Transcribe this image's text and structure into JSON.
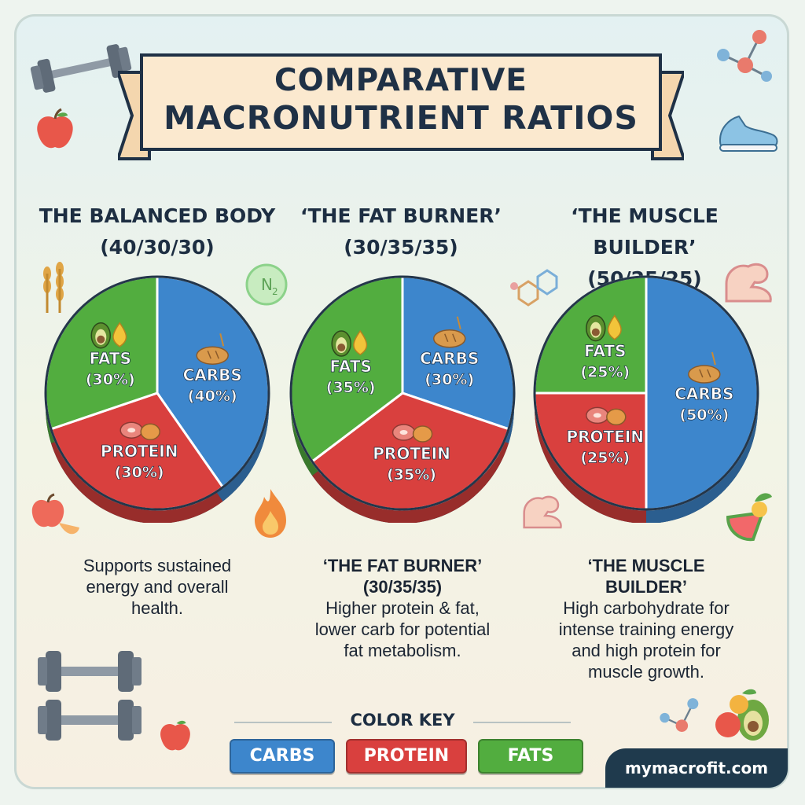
{
  "header": {
    "title_line1": "COMPARATIVE",
    "title_line2": "MACRONUTRIENT RATIOS"
  },
  "colors": {
    "carbs": "#3d86cc",
    "protein": "#d9403e",
    "fats": "#52ad3f"
  },
  "chart_data": [
    {
      "type": "pie",
      "title_line1": "THE BALANCED BODY",
      "title_line2": "(40/30/30)",
      "slices": [
        {
          "label": "CARBS",
          "pct_label": "(40%)",
          "value": 40,
          "color": "#3d86cc"
        },
        {
          "label": "PROTEIN",
          "pct_label": "(30%)",
          "value": 30,
          "color": "#d9403e"
        },
        {
          "label": "FATS",
          "pct_label": "(30%)",
          "value": 30,
          "color": "#52ad3f"
        }
      ]
    },
    {
      "type": "pie",
      "title_line1": "‘THE FAT BURNER’",
      "title_line2": "(30/35/35)",
      "slices": [
        {
          "label": "CARBS",
          "pct_label": "(30%)",
          "value": 30,
          "color": "#3d86cc"
        },
        {
          "label": "PROTEIN",
          "pct_label": "(35%)",
          "value": 35,
          "color": "#d9403e"
        },
        {
          "label": "FATS",
          "pct_label": "(35%)",
          "value": 35,
          "color": "#52ad3f"
        }
      ]
    },
    {
      "type": "pie",
      "title_line1": "‘THE MUSCLE BUILDER’",
      "title_line2": "(50/25/25)",
      "slices": [
        {
          "label": "CARBS",
          "pct_label": "(50%)",
          "value": 50,
          "color": "#3d86cc"
        },
        {
          "label": "PROTEIN",
          "pct_label": "(25%)",
          "value": 25,
          "color": "#d9403e"
        },
        {
          "label": "FATS",
          "pct_label": "(25%)",
          "value": 25,
          "color": "#52ad3f"
        }
      ]
    }
  ],
  "descriptions": [
    {
      "head1": "",
      "head2": "",
      "lines": [
        "Supports sustained",
        "energy and overall",
        "health."
      ]
    },
    {
      "head1": "‘THE FAT BURNER’",
      "head2": "(30/35/35)",
      "lines": [
        "Higher protein & fat,",
        "lower carb for potential",
        "fat metabolism."
      ]
    },
    {
      "head1": "‘THE MUSCLE",
      "head2": "BUILDER’",
      "lines": [
        "High carbohydrate for",
        "intense training energy",
        "and high protein for",
        "muscle growth."
      ]
    }
  ],
  "color_key": {
    "title": "COLOR KEY",
    "items": [
      {
        "label": "CARBS",
        "color": "#3d86cc"
      },
      {
        "label": "PROTEIN",
        "color": "#d9403e"
      },
      {
        "label": "FATS",
        "color": "#52ad3f"
      }
    ]
  },
  "footer": {
    "site": "mymacrofit.com"
  },
  "icons": [
    "dumbbell-icon",
    "apple-icon",
    "molecule-icon",
    "sneaker-icon",
    "wheat-icon",
    "n2-bubble-icon",
    "flexed-arm-icon",
    "flame-icon",
    "avocado-icon",
    "oil-drop-icon",
    "steak-icon",
    "chicken-icon",
    "bread-icon",
    "sparkle-icon"
  ]
}
